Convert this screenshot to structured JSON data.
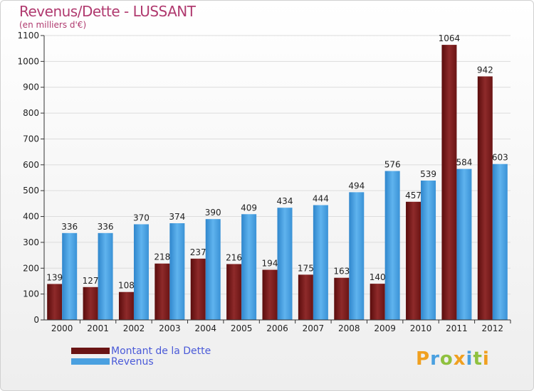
{
  "chart_data": {
    "type": "bar",
    "title": "Revenus/Dette - LUSSANT",
    "subtitle": "(en milliers d'€)",
    "categories": [
      "2000",
      "2001",
      "2002",
      "2003",
      "2004",
      "2005",
      "2006",
      "2007",
      "2008",
      "2009",
      "2010",
      "2011",
      "2012"
    ],
    "series": [
      {
        "name": "Montant de la Dette",
        "color": "#7a1a1a",
        "values": [
          139,
          127,
          108,
          218,
          237,
          216,
          194,
          175,
          163,
          140,
          457,
          1064,
          942
        ]
      },
      {
        "name": "Revenus",
        "color": "#4aa0e0",
        "values": [
          336,
          336,
          370,
          374,
          390,
          409,
          434,
          444,
          494,
          576,
          539,
          584,
          603
        ]
      }
    ],
    "ylim": [
      0,
      1100
    ],
    "yticks": [
      0,
      100,
      200,
      300,
      400,
      500,
      600,
      700,
      800,
      900,
      1000,
      1100
    ],
    "grid": true,
    "legend_position": "bottom-left"
  },
  "brand": {
    "letters": [
      "P",
      "r",
      "o",
      "x",
      "i",
      "t",
      "i"
    ],
    "colors": [
      "#f0a020",
      "#4aa0e0",
      "#8fc13f",
      "#f0a020",
      "#4aa0e0",
      "#8fc13f",
      "#f0a020"
    ]
  }
}
